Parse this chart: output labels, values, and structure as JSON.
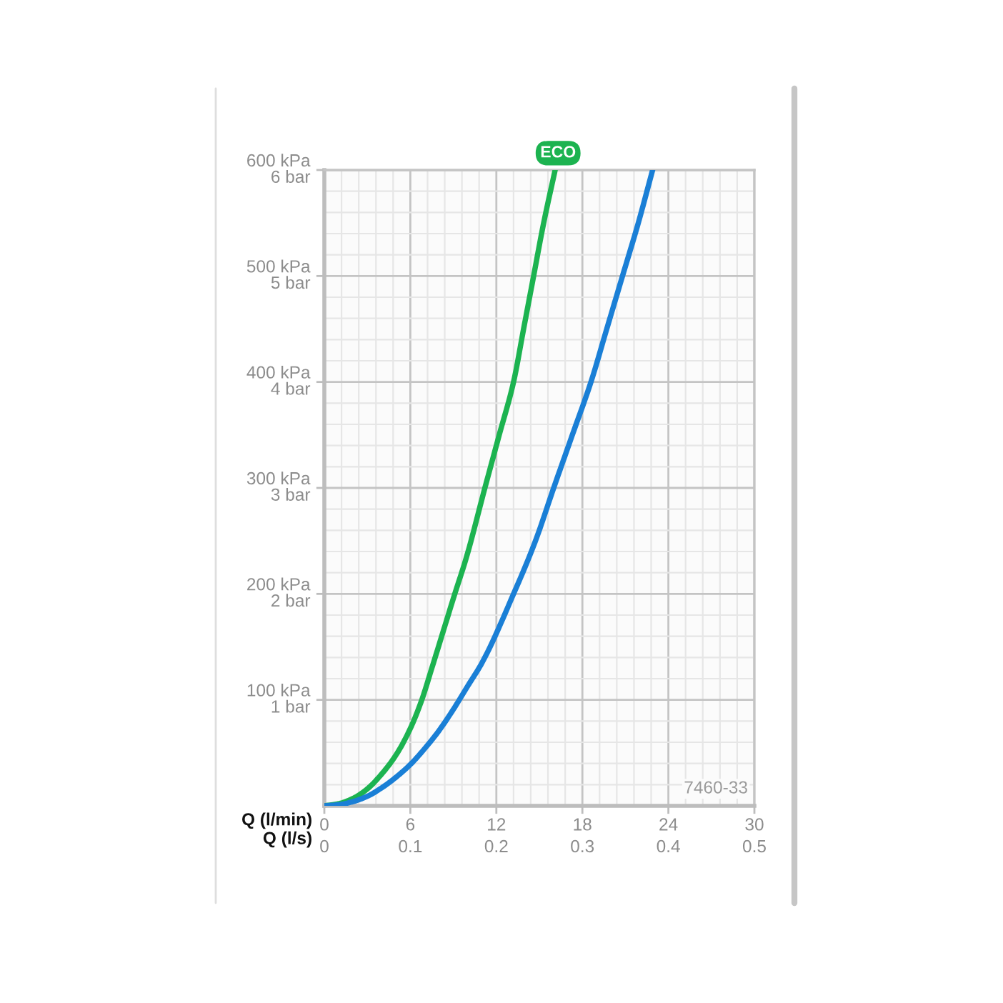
{
  "chart_data": {
    "type": "line",
    "xlabel": "Q (l/min)",
    "x2label": "Q (l/s)",
    "xlim": [
      0,
      30
    ],
    "xticks": [
      0,
      6,
      12,
      18,
      24,
      30
    ],
    "x2lim": [
      0,
      0.5
    ],
    "x2ticks": [
      0,
      0.1,
      0.2,
      0.3,
      0.4,
      0.5
    ],
    "ylim": [
      0,
      600
    ],
    "yticks": [
      {
        "value": 100,
        "label": "100 kPa"
      },
      {
        "value": 200,
        "label": "200 kPa"
      },
      {
        "value": 300,
        "label": "300 kPa"
      },
      {
        "value": 400,
        "label": "400 kPa"
      },
      {
        "value": 500,
        "label": "500 kPa"
      },
      {
        "value": 600,
        "label": "600 kPa"
      }
    ],
    "y2lim": [
      0,
      6
    ],
    "y2ticks": [
      {
        "value": 1,
        "label": "1 bar"
      },
      {
        "value": 2,
        "label": "2 bar"
      },
      {
        "value": 3,
        "label": "3 bar"
      },
      {
        "value": 4,
        "label": "4 bar"
      },
      {
        "value": 5,
        "label": "5 bar"
      },
      {
        "value": 6,
        "label": "6 bar"
      }
    ],
    "grid": true,
    "series": [
      {
        "name": "ECO",
        "color": "#1cb350",
        "x": [
          0,
          1,
          2,
          3,
          4,
          5,
          6,
          6.8,
          7.5,
          9.1,
          9.9,
          11.2,
          12.2,
          13.2,
          13.9,
          14.6,
          15.3,
          16.1
        ],
        "values": [
          0,
          2,
          7,
          16,
          30,
          48,
          73,
          100,
          130,
          200,
          234,
          300,
          350,
          400,
          450,
          500,
          550,
          600
        ]
      },
      {
        "color": "#1a7fd6",
        "x": [
          0,
          1,
          2,
          3,
          4,
          5,
          6,
          7,
          8,
          9,
          10,
          11,
          13.2,
          14.7,
          16,
          17.3,
          18.6,
          19.7,
          20.8,
          21.9,
          22.9
        ],
        "values": [
          0,
          1,
          4,
          9,
          17,
          27,
          39,
          54,
          71,
          91,
          113,
          135,
          200,
          249,
          300,
          350,
          400,
          450,
          500,
          550,
          600
        ]
      }
    ],
    "annotations": [
      "7460-33"
    ]
  }
}
